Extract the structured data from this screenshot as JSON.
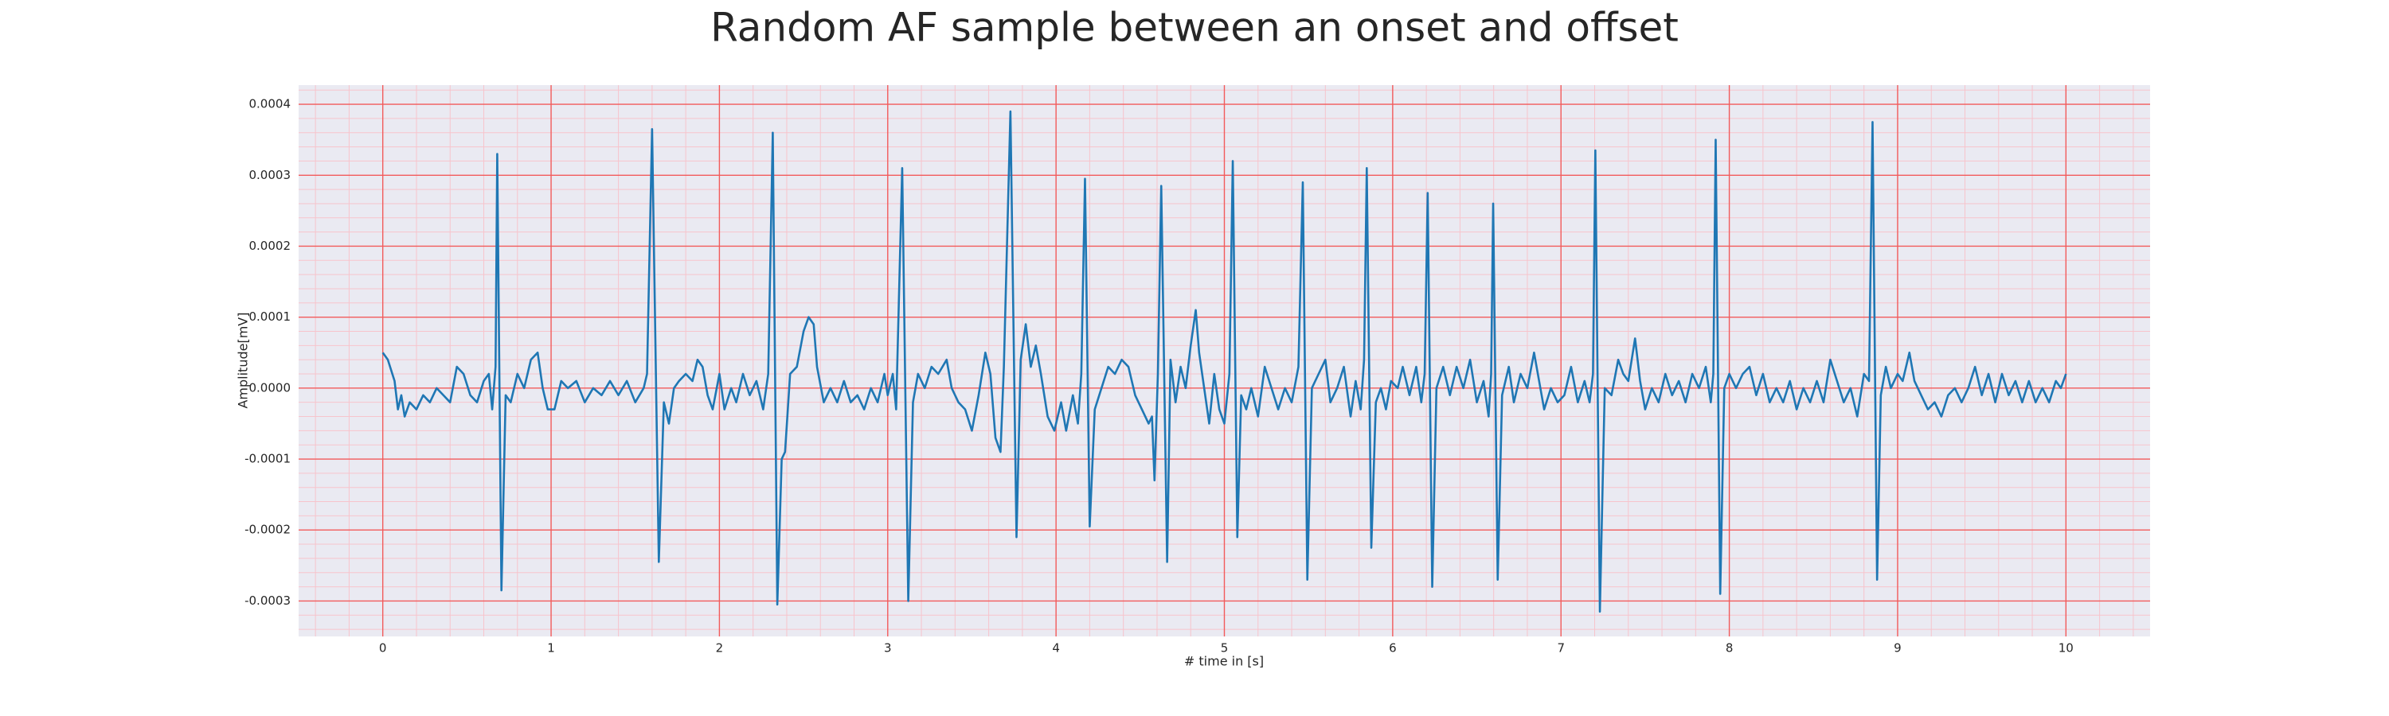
{
  "chart_data": {
    "type": "line",
    "title": "Random AF sample between an onset and offset",
    "xlabel": "# time in [s]",
    "ylabel": "Amplitude[mV]",
    "xlim": [
      -0.5,
      10.5
    ],
    "ylim": [
      -0.00035,
      0.000427
    ],
    "xticks": [
      0,
      1,
      2,
      3,
      4,
      5,
      6,
      7,
      8,
      9,
      10
    ],
    "yticks": [
      -0.0003,
      -0.0002,
      -0.0001,
      {
        "value": 0,
        "label": "0.0000"
      },
      0.0001,
      0.0002,
      0.0003,
      0.0004
    ],
    "grid": true,
    "grid_color": "#f25b5b",
    "minor_grid_color": "#f7c4cc",
    "minor_grid_divisions": 5,
    "background": "#eaeaf2",
    "series": [
      {
        "color": "#1f77b4",
        "x": [
          0,
          0.03,
          0.07,
          0.09,
          0.11,
          0.13,
          0.16,
          0.2,
          0.24,
          0.28,
          0.32,
          0.36,
          0.4,
          0.44,
          0.48,
          0.52,
          0.56,
          0.6,
          0.63,
          0.65,
          0.67,
          0.68,
          0.705,
          0.73,
          0.76,
          0.8,
          0.84,
          0.88,
          0.92,
          0.95,
          0.98,
          1.02,
          1.06,
          1.1,
          1.15,
          1.2,
          1.25,
          1.3,
          1.35,
          1.4,
          1.45,
          1.5,
          1.55,
          1.57,
          1.6,
          1.64,
          1.67,
          1.7,
          1.73,
          1.76,
          1.8,
          1.84,
          1.87,
          1.9,
          1.93,
          1.96,
          2.0,
          2.03,
          2.07,
          2.1,
          2.14,
          2.18,
          2.22,
          2.26,
          2.29,
          2.317,
          2.344,
          2.37,
          2.39,
          2.42,
          2.46,
          2.5,
          2.53,
          2.56,
          2.58,
          2.62,
          2.66,
          2.7,
          2.74,
          2.78,
          2.82,
          2.86,
          2.9,
          2.94,
          2.98,
          3.0,
          3.03,
          3.05,
          3.086,
          3.122,
          3.15,
          3.18,
          3.22,
          3.26,
          3.3,
          3.35,
          3.38,
          3.42,
          3.46,
          3.5,
          3.54,
          3.58,
          3.61,
          3.64,
          3.67,
          3.69,
          3.729,
          3.765,
          3.79,
          3.82,
          3.85,
          3.88,
          3.91,
          3.95,
          3.99,
          4.03,
          4.06,
          4.1,
          4.13,
          4.15,
          4.172,
          4.2,
          4.23,
          4.27,
          4.31,
          4.35,
          4.39,
          4.43,
          4.47,
          4.51,
          4.55,
          4.57,
          4.585,
          4.605,
          4.625,
          4.66,
          4.68,
          4.71,
          4.74,
          4.77,
          4.8,
          4.83,
          4.85,
          4.88,
          4.91,
          4.94,
          4.97,
          5.0,
          5.03,
          5.05,
          5.077,
          5.1,
          5.13,
          5.16,
          5.2,
          5.24,
          5.28,
          5.32,
          5.36,
          5.4,
          5.44,
          5.466,
          5.493,
          5.52,
          5.56,
          5.6,
          5.63,
          5.67,
          5.71,
          5.75,
          5.78,
          5.81,
          5.83,
          5.846,
          5.873,
          5.9,
          5.93,
          5.96,
          5.99,
          6.03,
          6.06,
          6.1,
          6.14,
          6.17,
          6.19,
          6.208,
          6.235,
          6.26,
          6.3,
          6.34,
          6.38,
          6.42,
          6.46,
          6.5,
          6.54,
          6.57,
          6.585,
          6.597,
          6.624,
          6.65,
          6.69,
          6.72,
          6.76,
          6.8,
          6.84,
          6.87,
          6.9,
          6.94,
          6.98,
          7.02,
          7.06,
          7.1,
          7.14,
          7.17,
          7.19,
          7.204,
          7.231,
          7.26,
          7.3,
          7.34,
          7.37,
          7.4,
          7.44,
          7.47,
          7.5,
          7.54,
          7.58,
          7.62,
          7.66,
          7.7,
          7.74,
          7.78,
          7.82,
          7.86,
          7.89,
          7.905,
          7.919,
          7.946,
          7.97,
          8.0,
          8.04,
          8.08,
          8.12,
          8.16,
          8.2,
          8.24,
          8.28,
          8.32,
          8.36,
          8.4,
          8.44,
          8.48,
          8.52,
          8.56,
          8.6,
          8.64,
          8.68,
          8.72,
          8.76,
          8.8,
          8.83,
          8.851,
          8.878,
          8.9,
          8.93,
          8.96,
          9.0,
          9.03,
          9.07,
          9.1,
          9.14,
          9.18,
          9.22,
          9.26,
          9.3,
          9.34,
          9.38,
          9.42,
          9.46,
          9.5,
          9.54,
          9.58,
          9.62,
          9.66,
          9.7,
          9.74,
          9.78,
          9.82,
          9.86,
          9.9,
          9.94,
          9.97,
          10.0
        ],
        "values": [
          5e-05,
          4e-05,
          1e-05,
          -3e-05,
          -1e-05,
          -4e-05,
          -2e-05,
          -3e-05,
          -1e-05,
          -2e-05,
          0,
          -1e-05,
          -2e-05,
          3e-05,
          2e-05,
          -1e-05,
          -2e-05,
          1e-05,
          2e-05,
          -3e-05,
          3e-05,
          0.00033,
          -0.000285,
          -1e-05,
          -2e-05,
          2e-05,
          0,
          4e-05,
          5e-05,
          0,
          -3e-05,
          -3e-05,
          1e-05,
          0,
          1e-05,
          -2e-05,
          0,
          -1e-05,
          1e-05,
          -1e-05,
          1e-05,
          -2e-05,
          0,
          2e-05,
          0.000365,
          -0.000245,
          -2e-05,
          -5e-05,
          0,
          1e-05,
          2e-05,
          1e-05,
          4e-05,
          3e-05,
          -1e-05,
          -3e-05,
          2e-05,
          -3e-05,
          0,
          -2e-05,
          2e-05,
          -1e-05,
          1e-05,
          -3e-05,
          2e-05,
          0.00036,
          -0.000305,
          -0.0001,
          -9e-05,
          2e-05,
          3e-05,
          8e-05,
          0.0001,
          9e-05,
          3e-05,
          -2e-05,
          0,
          -2e-05,
          1e-05,
          -2e-05,
          -1e-05,
          -3e-05,
          0,
          -2e-05,
          2e-05,
          -1e-05,
          2e-05,
          -3e-05,
          0.00031,
          -0.0003,
          -2e-05,
          2e-05,
          0,
          3e-05,
          2e-05,
          4e-05,
          0,
          -2e-05,
          -3e-05,
          -6e-05,
          -1e-05,
          5e-05,
          2e-05,
          -7e-05,
          -9e-05,
          3e-05,
          0.00039,
          -0.00021,
          4e-05,
          9e-05,
          3e-05,
          6e-05,
          2e-05,
          -4e-05,
          -6e-05,
          -2e-05,
          -6e-05,
          -1e-05,
          -5e-05,
          2e-05,
          0.000295,
          -0.000195,
          -3e-05,
          0,
          3e-05,
          2e-05,
          4e-05,
          3e-05,
          -1e-05,
          -3e-05,
          -5e-05,
          -4e-05,
          -0.00013,
          2e-05,
          0.000285,
          -0.000245,
          4e-05,
          -2e-05,
          3e-05,
          0,
          6e-05,
          0.00011,
          5e-05,
          0,
          -5e-05,
          2e-05,
          -3e-05,
          -5e-05,
          2e-05,
          0.00032,
          -0.00021,
          -1e-05,
          -3e-05,
          0,
          -4e-05,
          3e-05,
          0,
          -3e-05,
          0,
          -2e-05,
          3e-05,
          0.00029,
          -0.00027,
          0,
          2e-05,
          4e-05,
          -2e-05,
          0,
          3e-05,
          -4e-05,
          1e-05,
          -3e-05,
          4e-05,
          0.00031,
          -0.000225,
          -2e-05,
          0,
          -3e-05,
          1e-05,
          0,
          3e-05,
          -1e-05,
          3e-05,
          -2e-05,
          2e-05,
          0.000275,
          -0.00028,
          0,
          3e-05,
          -1e-05,
          3e-05,
          0,
          4e-05,
          -2e-05,
          1e-05,
          -4e-05,
          2e-05,
          0.00026,
          -0.00027,
          -1e-05,
          3e-05,
          -2e-05,
          2e-05,
          0,
          5e-05,
          1e-05,
          -3e-05,
          0,
          -2e-05,
          -1e-05,
          3e-05,
          -2e-05,
          1e-05,
          -2e-05,
          2e-05,
          0.000335,
          -0.000315,
          0,
          -1e-05,
          4e-05,
          2e-05,
          1e-05,
          7e-05,
          1e-05,
          -3e-05,
          0,
          -2e-05,
          2e-05,
          -1e-05,
          1e-05,
          -2e-05,
          2e-05,
          0,
          3e-05,
          -2e-05,
          2e-05,
          0.00035,
          -0.00029,
          0,
          2e-05,
          0,
          2e-05,
          3e-05,
          -1e-05,
          2e-05,
          -2e-05,
          0,
          -2e-05,
          1e-05,
          -3e-05,
          0,
          -2e-05,
          1e-05,
          -2e-05,
          4e-05,
          1e-05,
          -2e-05,
          0,
          -4e-05,
          2e-05,
          1e-05,
          0.000375,
          -0.00027,
          -1e-05,
          3e-05,
          0,
          2e-05,
          1e-05,
          5e-05,
          1e-05,
          -1e-05,
          -3e-05,
          -2e-05,
          -4e-05,
          -1e-05,
          0,
          -2e-05,
          0,
          3e-05,
          -1e-05,
          2e-05,
          -2e-05,
          2e-05,
          -1e-05,
          1e-05,
          -2e-05,
          1e-05,
          -2e-05,
          0,
          -2e-05,
          1e-05,
          0,
          2e-05
        ]
      }
    ]
  }
}
